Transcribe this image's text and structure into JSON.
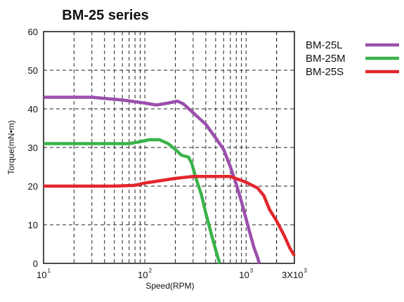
{
  "chart_data": {
    "type": "line",
    "title": "BM-25 series",
    "xlabel": "Speed(RPM)",
    "ylabel": "Torque(mN•m)",
    "x_scale": "log",
    "xlim": [
      10,
      3000
    ],
    "ylim": [
      0,
      60
    ],
    "grid": true,
    "legend_position": "right",
    "y_ticks": [
      "0",
      "10",
      "20",
      "30",
      "40",
      "50",
      "60"
    ],
    "x_ticks": [
      {
        "value": 10,
        "base": "10",
        "exp": "1"
      },
      {
        "value": 100,
        "base": "10",
        "exp": "2"
      },
      {
        "value": 1000,
        "base": "10",
        "exp": "3"
      },
      {
        "value": 3000,
        "base": "3X10",
        "exp": "3"
      }
    ],
    "series": [
      {
        "name": "BM-25L",
        "color": "#9b4fad",
        "points": [
          [
            10,
            43
          ],
          [
            30,
            43
          ],
          [
            60,
            42.3
          ],
          [
            100,
            41.5
          ],
          [
            130,
            41
          ],
          [
            170,
            41.5
          ],
          [
            210,
            42
          ],
          [
            240,
            41.3
          ],
          [
            300,
            39
          ],
          [
            400,
            36
          ],
          [
            500,
            32.5
          ],
          [
            600,
            29.5
          ],
          [
            700,
            25
          ],
          [
            800,
            20.5
          ],
          [
            900,
            16
          ],
          [
            1000,
            11.5
          ],
          [
            1100,
            7.5
          ],
          [
            1200,
            4
          ],
          [
            1300,
            1.5
          ],
          [
            1350,
            0
          ]
        ]
      },
      {
        "name": "BM-25M",
        "color": "#3ab34a",
        "points": [
          [
            10,
            31
          ],
          [
            30,
            31
          ],
          [
            70,
            31
          ],
          [
            90,
            31.5
          ],
          [
            110,
            32
          ],
          [
            140,
            32
          ],
          [
            170,
            31
          ],
          [
            200,
            29.5
          ],
          [
            230,
            28
          ],
          [
            270,
            27.5
          ],
          [
            290,
            26
          ],
          [
            320,
            22
          ],
          [
            360,
            18
          ],
          [
            400,
            13
          ],
          [
            460,
            7
          ],
          [
            520,
            2
          ],
          [
            550,
            0
          ]
        ]
      },
      {
        "name": "BM-25S",
        "color": "#e3262c",
        "points": [
          [
            10,
            20
          ],
          [
            50,
            20
          ],
          [
            80,
            20.2
          ],
          [
            100,
            20.8
          ],
          [
            150,
            21.5
          ],
          [
            200,
            22
          ],
          [
            300,
            22.5
          ],
          [
            500,
            22.5
          ],
          [
            700,
            22.5
          ],
          [
            1000,
            21
          ],
          [
            1300,
            19.5
          ],
          [
            1500,
            17.5
          ],
          [
            1700,
            14
          ],
          [
            2000,
            11
          ],
          [
            2400,
            7
          ],
          [
            2700,
            4
          ],
          [
            3000,
            2
          ]
        ]
      }
    ]
  }
}
